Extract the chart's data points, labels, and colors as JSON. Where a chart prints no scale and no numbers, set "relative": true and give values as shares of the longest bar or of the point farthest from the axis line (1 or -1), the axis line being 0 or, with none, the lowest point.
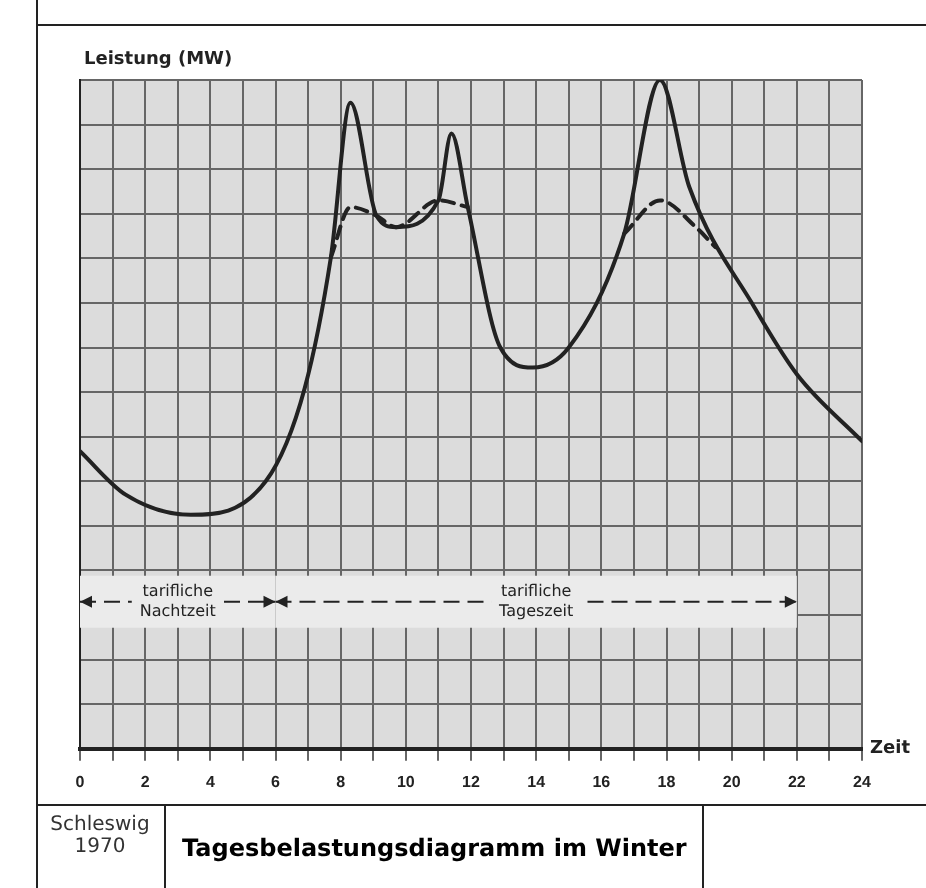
{
  "chart_data": {
    "type": "line",
    "title": "Tagesbelastungsdiagramm im Winter",
    "ylabel": "Leistung (MW)",
    "xlabel": "Zeit",
    "relative": true,
    "xlim": [
      0,
      24
    ],
    "xticks": [
      0,
      {
        "value": 1,
        "label": null
      },
      2,
      {
        "value": 3,
        "label": null
      },
      4,
      {
        "value": 5,
        "label": null
      },
      6,
      {
        "value": 7,
        "label": null
      },
      8,
      {
        "value": 9,
        "label": null
      },
      10,
      {
        "value": 11,
        "label": null
      },
      12,
      {
        "value": 13,
        "label": null
      },
      14,
      {
        "value": 15,
        "label": null
      },
      16,
      {
        "value": 17,
        "label": null
      },
      18,
      {
        "value": 19,
        "label": null
      },
      20,
      {
        "value": 21,
        "label": null
      },
      22,
      {
        "value": 23,
        "label": null
      },
      24
    ],
    "grid": true,
    "marker": "none",
    "series": [
      {
        "color": "#222222",
        "line_style": "solid",
        "x": [
          0,
          1.4,
          3.4,
          5.7,
          6.9,
          7.7,
          8.3,
          9.1,
          9.7,
          11,
          11.4,
          11.9,
          12.9,
          13.9,
          15,
          16.7,
          17.8,
          18.7,
          20.7,
          22,
          24
        ],
        "values": [
          0.445,
          0.38,
          0.35,
          0.4,
          0.54,
          0.735,
          0.966,
          0.797,
          0.78,
          0.82,
          0.92,
          0.81,
          0.6,
          0.57,
          0.6,
          0.77,
          1,
          0.84,
          0.66,
          0.56,
          0.46
        ]
      },
      {
        "color": "#222222",
        "line_style": "dashed",
        "x": [
          7.7,
          8.3,
          9.1,
          9.7,
          11,
          11.9,
          14,
          16.7,
          17.8,
          18.9,
          19.5
        ],
        "values": [
          0.735,
          0.81,
          0.797,
          0.78,
          0.82,
          0.81,
          null,
          0.77,
          0.82,
          0.78,
          0.75
        ]
      }
    ],
    "bands": [
      {
        "axis": "x",
        "from": 0,
        "to": 6,
        "label": "tarifliche Nachtzeit"
      },
      {
        "axis": "x",
        "from": 6,
        "to": 22,
        "label": "tarifliche Tageszeit"
      }
    ],
    "annotations": [
      "Schleswig 1970"
    ]
  }
}
